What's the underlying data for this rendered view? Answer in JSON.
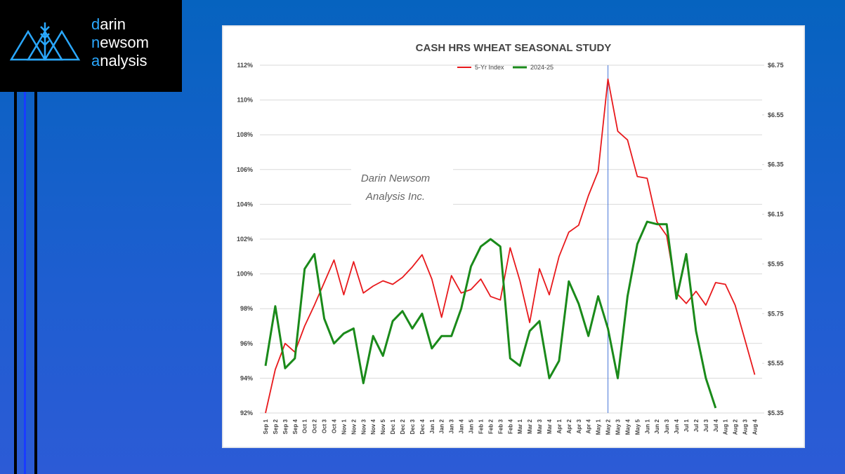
{
  "logo": {
    "lines": [
      "darin",
      "newsom",
      "analysis"
    ]
  },
  "chart_data": {
    "type": "line",
    "title": "CASH HRS WHEAT SEASONAL STUDY",
    "watermark": [
      "Darin Newsom",
      "Analysis Inc."
    ],
    "categories": [
      "Sep 1",
      "Sep 2",
      "Sep 3",
      "Sep 4",
      "Oct 1",
      "Oct 2",
      "Oct 3",
      "Oct 4",
      "Nov 1",
      "Nov 2",
      "Nov 3",
      "Nov 4",
      "Nov 5",
      "Dec 1",
      "Dec 2",
      "Dec 3",
      "Dec 4",
      "Jan 1",
      "Jan 2",
      "Jan 3",
      "Jan 4",
      "Jan 5",
      "Feb 1",
      "Feb 2",
      "Feb 3",
      "Feb 4",
      "Mar 1",
      "Mar 2",
      "Mar 3",
      "Mar 4",
      "Apr 1",
      "Apr 2",
      "Apr 3",
      "Apr 4",
      "May 1",
      "May 2",
      "May 3",
      "May 4",
      "May 5",
      "Jun 1",
      "Jun 2",
      "Jun 3",
      "Jun 4",
      "Jul 1",
      "Jul 2",
      "Jul 3",
      "Jul 4",
      "Aug 1",
      "Aug 2",
      "Aug 3",
      "Aug 4"
    ],
    "series": [
      {
        "name": "5-Yr Index",
        "color": "#e8191c",
        "axis": "y",
        "values": [
          92.0,
          94.5,
          96.0,
          95.5,
          97.0,
          98.2,
          99.5,
          100.8,
          98.8,
          100.7,
          98.9,
          99.3,
          99.6,
          99.4,
          99.8,
          100.4,
          101.1,
          99.7,
          97.5,
          99.9,
          98.9,
          99.1,
          99.7,
          98.7,
          98.5,
          101.5,
          99.6,
          97.2,
          100.3,
          98.8,
          101.0,
          102.4,
          102.8,
          104.5,
          105.9,
          111.2,
          108.2,
          107.7,
          105.6,
          105.5,
          103.0,
          102.2,
          98.9,
          98.3,
          99.0,
          98.2,
          99.5,
          99.4,
          98.2,
          96.2,
          94.2
        ]
      },
      {
        "name": "2024-25",
        "color": "#1a8a1a",
        "axis": "y2",
        "values": [
          5.54,
          5.78,
          5.53,
          5.57,
          5.93,
          5.99,
          5.73,
          5.63,
          5.67,
          5.69,
          5.47,
          5.66,
          5.58,
          5.72,
          5.76,
          5.69,
          5.75,
          5.61,
          5.66,
          5.66,
          5.77,
          5.94,
          6.02,
          6.05,
          6.02,
          5.57,
          5.54,
          5.68,
          5.72,
          5.49,
          5.56,
          5.88,
          5.79,
          5.66,
          5.82,
          5.69,
          5.49,
          5.82,
          6.03,
          6.12,
          6.11,
          6.11,
          5.81,
          5.99,
          5.68,
          5.49,
          5.37,
          null,
          null,
          null,
          null
        ]
      }
    ],
    "ylim": [
      92,
      112
    ],
    "yticks": [
      {
        "value": 92,
        "label": "92%"
      },
      {
        "value": 94,
        "label": "94%"
      },
      {
        "value": 96,
        "label": "96%"
      },
      {
        "value": 98,
        "label": "98%"
      },
      {
        "value": 100,
        "label": "100%"
      },
      {
        "value": 102,
        "label": "102%"
      },
      {
        "value": 104,
        "label": "104%"
      },
      {
        "value": 106,
        "label": "106%"
      },
      {
        "value": 108,
        "label": "108%"
      },
      {
        "value": 110,
        "label": "110%"
      },
      {
        "value": 112,
        "label": "112%"
      }
    ],
    "y2lim": [
      5.35,
      6.75
    ],
    "y2ticks": [
      {
        "value": 5.35,
        "label": "$5.35"
      },
      {
        "value": 5.55,
        "label": "$5.55"
      },
      {
        "value": 5.75,
        "label": "$5.75"
      },
      {
        "value": 5.95,
        "label": "$5.95"
      },
      {
        "value": 6.15,
        "label": "$6.15"
      },
      {
        "value": 6.35,
        "label": "$6.35"
      },
      {
        "value": 6.55,
        "label": "$6.55"
      },
      {
        "value": 6.75,
        "label": "$6.75"
      }
    ],
    "grid": true,
    "legend": "top"
  }
}
